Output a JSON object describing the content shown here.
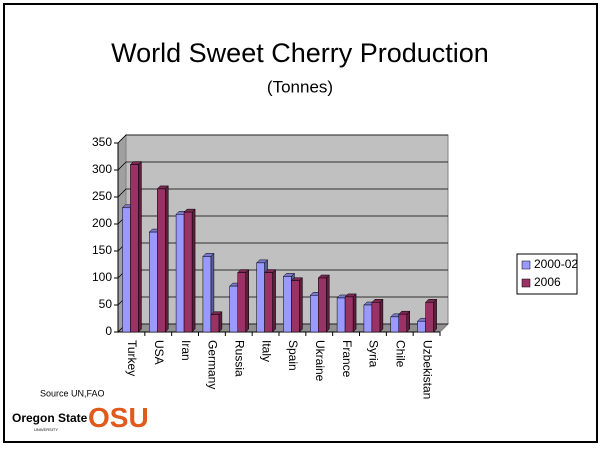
{
  "chart_data": {
    "type": "bar",
    "title": "World Sweet Cherry Production",
    "subtitle": "(Tonnes)",
    "categories": [
      "Turkey",
      "USA",
      "Iran",
      "Germany",
      "Russia",
      "Italy",
      "Spain",
      "Ukraine",
      "France",
      "Syria",
      "Chile",
      "Uzbekistan"
    ],
    "series": [
      {
        "name": "2000-02",
        "color": "#9999ff",
        "values": [
          230,
          185,
          218,
          140,
          85,
          128,
          103,
          68,
          63,
          50,
          28,
          20
        ]
      },
      {
        "name": "2006",
        "color": "#993366",
        "values": [
          310,
          265,
          222,
          32,
          110,
          110,
          95,
          100,
          65,
          55,
          33,
          55
        ]
      }
    ],
    "ylim": [
      0,
      350
    ],
    "yticks": [
      0,
      50,
      100,
      150,
      200,
      250,
      300,
      350
    ],
    "grid": true,
    "legend": "right"
  },
  "footer": {
    "source": "Source UN,FAO",
    "logo_name": "Oregon State",
    "logo_sub": "UNIVERSITY",
    "logo_mark": "OSU"
  }
}
